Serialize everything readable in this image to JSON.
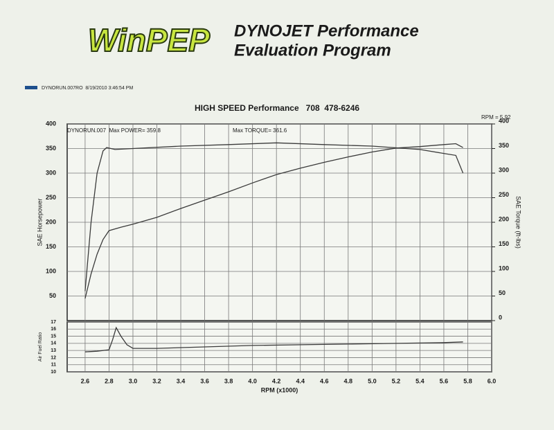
{
  "header": {
    "logo": "WinPEP",
    "line1": "DYNOJET Performance",
    "line2": "Evaluation Program"
  },
  "chart_data": [
    {
      "type": "line",
      "title": "HIGH SPEED Performance   708  478-6246",
      "legend": "DYNORUN.007RO  8/19/2010 3:46:54 PM",
      "legend_color": "#1d4f8c",
      "annotations": [
        "RPM = 5.92",
        "DYNORUN.007  Max POWER= 359.8",
        "Max TORQUE= 361.6"
      ],
      "ylabel": "SAE Horsepower",
      "y2label": "SAE Torque (ft-lbs)",
      "xlim": [
        2.45,
        6.0
      ],
      "xticks": [
        2.6,
        2.8,
        {
          "value": 3,
          "label": "3.0"
        },
        3.2,
        3.4,
        3.6,
        3.8,
        {
          "value": 4,
          "label": "4.0"
        },
        4.2,
        4.4,
        4.6,
        4.8,
        {
          "value": 5,
          "label": "5.0"
        },
        5.2,
        5.4,
        5.6,
        5.8,
        {
          "value": 6,
          "label": "6.0"
        }
      ],
      "ylim": [
        0,
        400
      ],
      "yticks": [
        50,
        100,
        150,
        200,
        250,
        300,
        350,
        400
      ],
      "y2lim": [
        0,
        400
      ],
      "y2ticks": [
        0,
        50,
        100,
        150,
        200,
        250,
        300,
        350,
        400
      ],
      "grid": true,
      "series": [
        {
          "color": "#3a3a3a",
          "x": [
            2.6,
            2.65,
            2.7,
            2.75,
            2.8,
            2.9,
            3.0,
            3.2,
            3.4,
            3.6,
            3.8,
            4.0,
            4.2,
            4.4,
            4.6,
            4.8,
            5.0,
            5.2,
            5.4,
            5.6,
            5.7,
            5.76
          ],
          "values": [
            45,
            95,
            135,
            165,
            183,
            190,
            196,
            210,
            228,
            245,
            262,
            280,
            297,
            310,
            322,
            333,
            343,
            351,
            354,
            358,
            359.8,
            352
          ]
        },
        {
          "color": "#3a3a3a",
          "axis": "y2",
          "x": [
            2.6,
            2.65,
            2.7,
            2.75,
            2.78,
            2.85,
            3.0,
            3.4,
            3.8,
            4.2,
            4.6,
            5.0,
            5.4,
            5.6,
            5.7,
            5.76
          ],
          "values": [
            60,
            200,
            300,
            345,
            352,
            348,
            350,
            355,
            358,
            361.6,
            358,
            355,
            348,
            340,
            336,
            300
          ]
        }
      ]
    },
    {
      "type": "line",
      "ylabel": "Air Fuel Ratio",
      "xlabel": "RPM (x1000)",
      "xlim": [
        2.45,
        6.0
      ],
      "xticks": [
        2.6,
        2.8,
        {
          "value": 3,
          "label": "3.0"
        },
        3.2,
        3.4,
        3.6,
        3.8,
        {
          "value": 4,
          "label": "4.0"
        },
        4.2,
        4.4,
        4.6,
        4.8,
        {
          "value": 5,
          "label": "5.0"
        },
        5.2,
        5.4,
        5.6,
        5.8,
        {
          "value": 6,
          "label": "6.0"
        }
      ],
      "ylim": [
        10,
        17
      ],
      "yticks": [
        10,
        11,
        12,
        13,
        14,
        15,
        16,
        17
      ],
      "grid": true,
      "series": [
        {
          "color": "#3a3a3a",
          "x": [
            2.6,
            2.7,
            2.8,
            2.83,
            2.86,
            2.9,
            2.95,
            3.0,
            3.2,
            3.6,
            4.0,
            4.4,
            4.8,
            5.2,
            5.6,
            5.76
          ],
          "values": [
            12.8,
            12.9,
            13.1,
            14.5,
            16.2,
            15.0,
            13.8,
            13.3,
            13.3,
            13.5,
            13.7,
            13.8,
            13.9,
            14.0,
            14.1,
            14.2
          ]
        }
      ]
    }
  ]
}
